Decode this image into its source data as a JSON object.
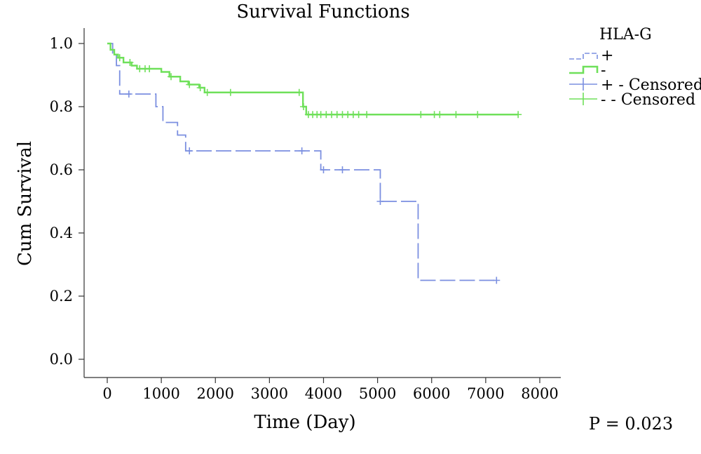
{
  "chart_data": {
    "type": "line",
    "title": "Survival Functions",
    "xlabel": "Time (Day)",
    "ylabel": "Cum Survival",
    "xlim": [
      0,
      8000
    ],
    "ylim": [
      0,
      1.0
    ],
    "x_ticks": [
      0,
      1000,
      2000,
      3000,
      4000,
      5000,
      6000,
      7000,
      8000
    ],
    "y_ticks": [
      0.0,
      0.2,
      0.4,
      0.6,
      0.8,
      1.0
    ],
    "x_tick_labels": [
      "0",
      "1000",
      "2000",
      "3000",
      "4000",
      "5000",
      "6000",
      "7000",
      "8000"
    ],
    "y_tick_labels": [
      "0.0",
      "0.2",
      "0.4",
      "0.6",
      "0.8",
      "1.0"
    ],
    "grid": false,
    "legend": {
      "title": "HLA-G",
      "placement": "top-right",
      "entries": [
        "+",
        "-",
        "+ - Censored",
        "- - Censored"
      ]
    },
    "annotation": "P = 0.023",
    "series": [
      {
        "name": "+",
        "color": "#7b8fe0",
        "style": "dashed",
        "steps": [
          [
            0,
            1.0
          ],
          [
            100,
            0.97
          ],
          [
            170,
            0.93
          ],
          [
            230,
            0.84
          ],
          [
            900,
            0.8
          ],
          [
            1030,
            0.75
          ],
          [
            1300,
            0.71
          ],
          [
            1450,
            0.66
          ],
          [
            3950,
            0.6
          ],
          [
            5050,
            0.5
          ],
          [
            5750,
            0.25
          ],
          [
            7200,
            0.25
          ]
        ],
        "censored": [
          [
            400,
            0.84
          ],
          [
            1520,
            0.66
          ],
          [
            3600,
            0.66
          ],
          [
            4000,
            0.6
          ],
          [
            4350,
            0.6
          ],
          [
            5050,
            0.5
          ],
          [
            7200,
            0.25
          ]
        ]
      },
      {
        "name": "-",
        "color": "#6fe05a",
        "style": "solid",
        "steps": [
          [
            0,
            1.0
          ],
          [
            60,
            0.98
          ],
          [
            130,
            0.965
          ],
          [
            200,
            0.955
          ],
          [
            300,
            0.94
          ],
          [
            450,
            0.93
          ],
          [
            550,
            0.92
          ],
          [
            1000,
            0.91
          ],
          [
            1150,
            0.895
          ],
          [
            1350,
            0.88
          ],
          [
            1500,
            0.87
          ],
          [
            1700,
            0.86
          ],
          [
            1800,
            0.845
          ],
          [
            3620,
            0.8
          ],
          [
            3680,
            0.775
          ],
          [
            7600,
            0.775
          ]
        ],
        "censored": [
          [
            230,
            0.955
          ],
          [
            420,
            0.94
          ],
          [
            600,
            0.92
          ],
          [
            700,
            0.92
          ],
          [
            780,
            0.92
          ],
          [
            1180,
            0.895
          ],
          [
            1520,
            0.87
          ],
          [
            1720,
            0.86
          ],
          [
            1850,
            0.845
          ],
          [
            2280,
            0.845
          ],
          [
            3550,
            0.845
          ],
          [
            3630,
            0.8
          ],
          [
            3720,
            0.775
          ],
          [
            3800,
            0.775
          ],
          [
            3880,
            0.775
          ],
          [
            3950,
            0.775
          ],
          [
            4050,
            0.775
          ],
          [
            4150,
            0.775
          ],
          [
            4250,
            0.775
          ],
          [
            4350,
            0.775
          ],
          [
            4450,
            0.775
          ],
          [
            4550,
            0.775
          ],
          [
            4650,
            0.775
          ],
          [
            4800,
            0.775
          ],
          [
            5800,
            0.775
          ],
          [
            6050,
            0.775
          ],
          [
            6150,
            0.775
          ],
          [
            6450,
            0.775
          ],
          [
            6850,
            0.775
          ],
          [
            7600,
            0.775
          ]
        ]
      }
    ]
  }
}
